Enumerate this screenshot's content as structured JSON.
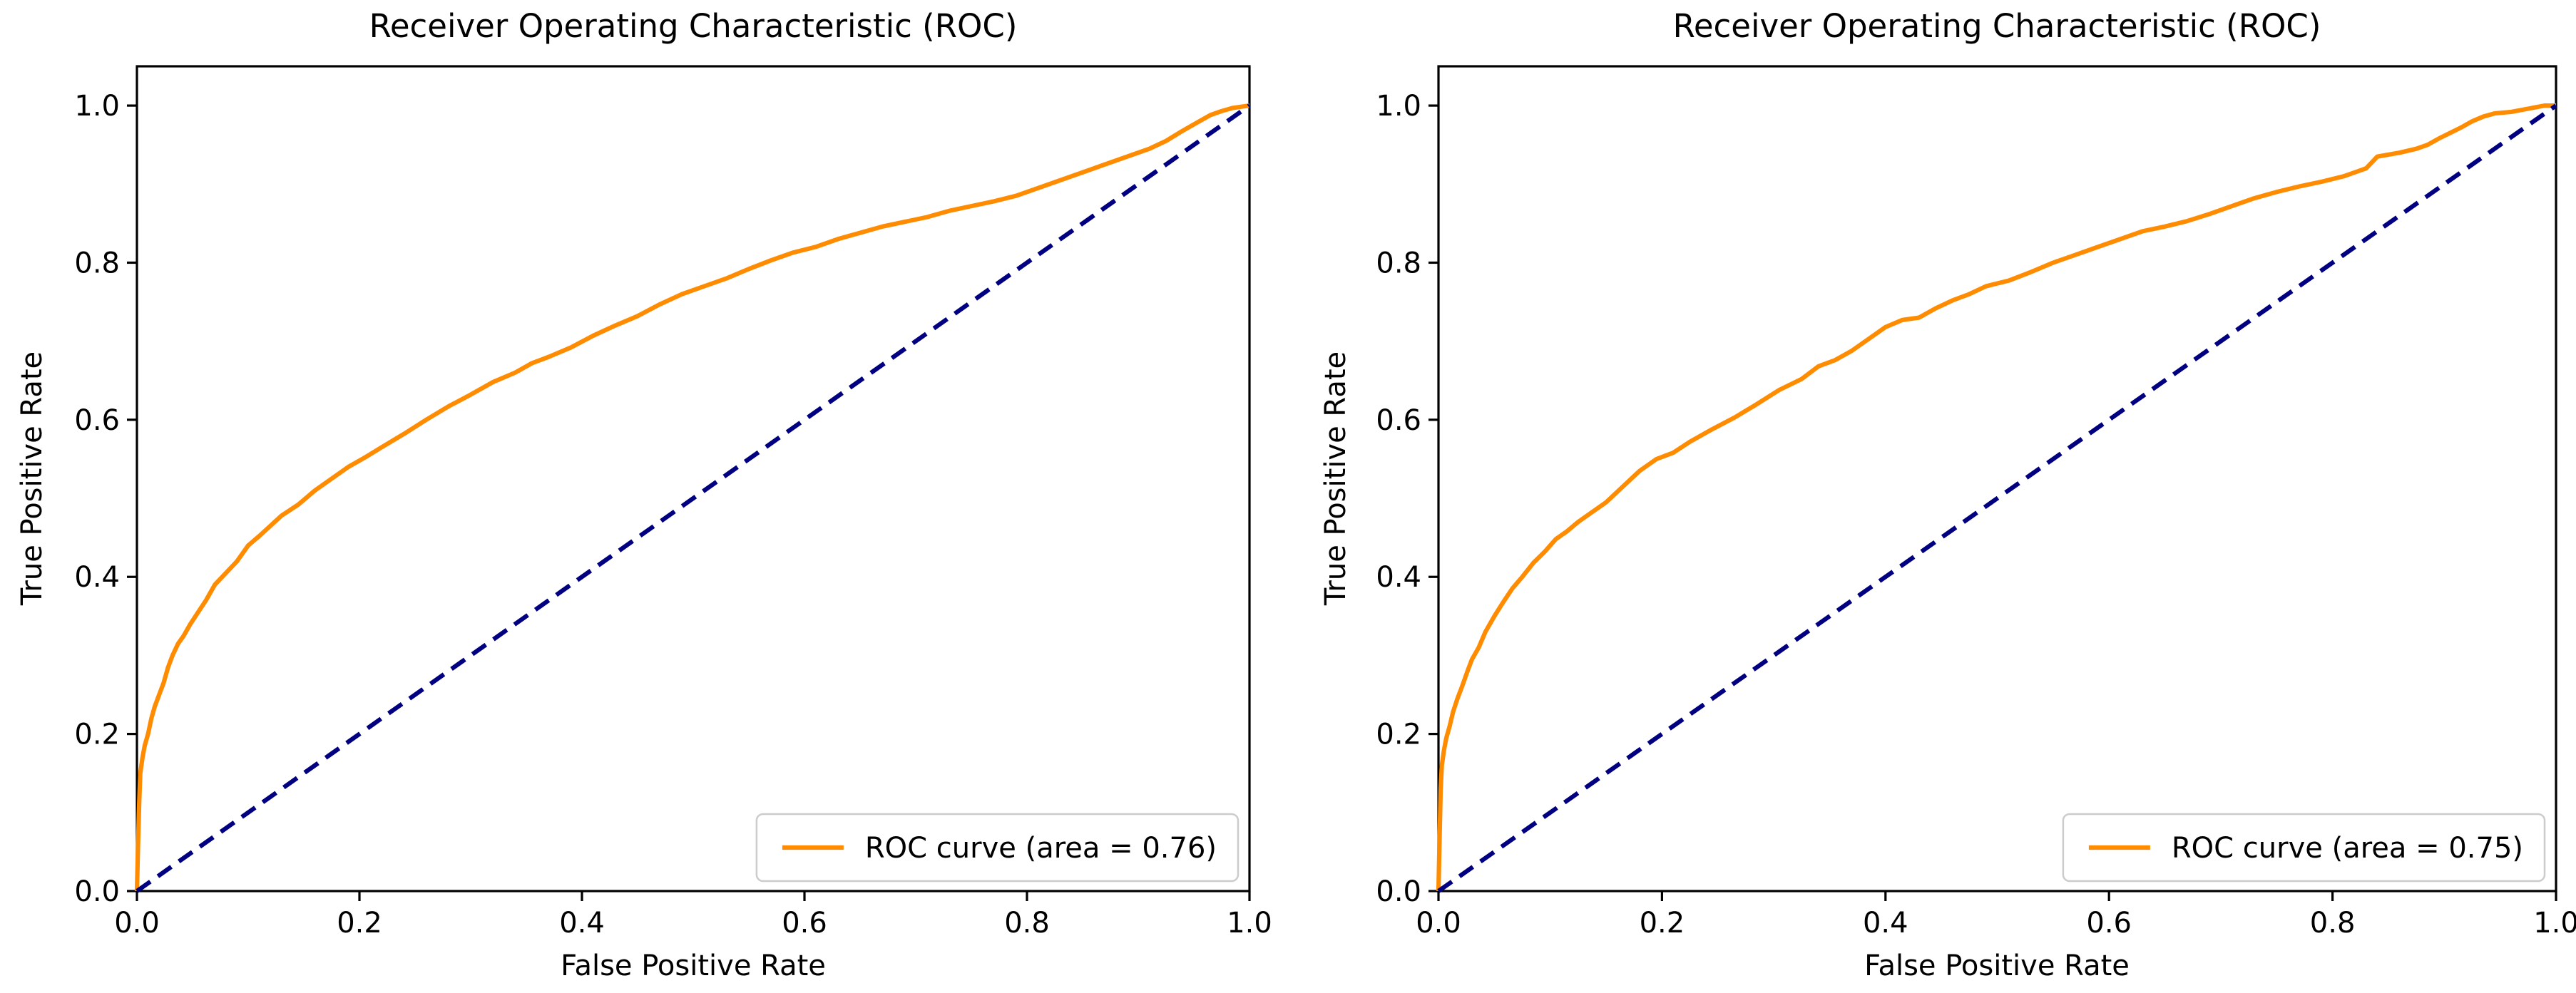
{
  "figure": {
    "background": "#ffffff",
    "description": "Two side-by-side ROC curve plots"
  },
  "colors": {
    "roc_curve": "#FF8C00",
    "chance_line": "#000080",
    "text": "#000000",
    "spine": "#000000",
    "legend_border": "#cccccc",
    "legend_background": "#ffffff"
  },
  "chart_data": [
    {
      "type": "line",
      "title": "Receiver Operating Characteristic (ROC)",
      "xlabel": "False Positive Rate",
      "ylabel": "True Positive Rate",
      "xlim": [
        0.0,
        1.0
      ],
      "ylim": [
        0.0,
        1.05
      ],
      "x_ticks": [
        0.0,
        0.2,
        0.4,
        0.6,
        0.8,
        1.0
      ],
      "y_ticks": [
        0.0,
        0.2,
        0.4,
        0.6,
        0.8,
        1.0
      ],
      "grid": false,
      "legend": {
        "position": "lower right",
        "label": "ROC curve (area = 0.76)"
      },
      "auc": 0.76,
      "series": [
        {
          "name": "ROC curve",
          "color": "#FF8C00",
          "style": "solid",
          "points": [
            [
              0,
              0
            ],
            [
              0.001,
              0.06
            ],
            [
              0.002,
              0.11
            ],
            [
              0.003,
              0.15
            ],
            [
              0.005,
              0.17
            ],
            [
              0.007,
              0.185
            ],
            [
              0.01,
              0.2
            ],
            [
              0.013,
              0.22
            ],
            [
              0.016,
              0.235
            ],
            [
              0.02,
              0.25
            ],
            [
              0.024,
              0.265
            ],
            [
              0.028,
              0.285
            ],
            [
              0.032,
              0.3
            ],
            [
              0.037,
              0.315
            ],
            [
              0.042,
              0.325
            ],
            [
              0.048,
              0.34
            ],
            [
              0.055,
              0.355
            ],
            [
              0.062,
              0.37
            ],
            [
              0.07,
              0.39
            ],
            [
              0.08,
              0.405
            ],
            [
              0.09,
              0.42
            ],
            [
              0.1,
              0.44
            ],
            [
              0.11,
              0.452
            ],
            [
              0.12,
              0.465
            ],
            [
              0.13,
              0.478
            ],
            [
              0.145,
              0.492
            ],
            [
              0.16,
              0.51
            ],
            [
              0.175,
              0.525
            ],
            [
              0.19,
              0.54
            ],
            [
              0.205,
              0.552
            ],
            [
              0.22,
              0.565
            ],
            [
              0.24,
              0.582
            ],
            [
              0.26,
              0.6
            ],
            [
              0.28,
              0.617
            ],
            [
              0.3,
              0.632
            ],
            [
              0.32,
              0.648
            ],
            [
              0.34,
              0.66
            ],
            [
              0.355,
              0.672
            ],
            [
              0.37,
              0.68
            ],
            [
              0.39,
              0.692
            ],
            [
              0.41,
              0.707
            ],
            [
              0.43,
              0.72
            ],
            [
              0.45,
              0.732
            ],
            [
              0.47,
              0.747
            ],
            [
              0.49,
              0.76
            ],
            [
              0.51,
              0.77
            ],
            [
              0.53,
              0.78
            ],
            [
              0.55,
              0.792
            ],
            [
              0.57,
              0.803
            ],
            [
              0.59,
              0.813
            ],
            [
              0.61,
              0.82
            ],
            [
              0.63,
              0.83
            ],
            [
              0.65,
              0.838
            ],
            [
              0.67,
              0.846
            ],
            [
              0.69,
              0.852
            ],
            [
              0.71,
              0.858
            ],
            [
              0.73,
              0.866
            ],
            [
              0.75,
              0.872
            ],
            [
              0.77,
              0.878
            ],
            [
              0.79,
              0.885
            ],
            [
              0.81,
              0.895
            ],
            [
              0.83,
              0.905
            ],
            [
              0.85,
              0.915
            ],
            [
              0.87,
              0.925
            ],
            [
              0.89,
              0.935
            ],
            [
              0.91,
              0.945
            ],
            [
              0.925,
              0.955
            ],
            [
              0.94,
              0.968
            ],
            [
              0.955,
              0.98
            ],
            [
              0.965,
              0.988
            ],
            [
              0.975,
              0.993
            ],
            [
              0.985,
              0.997
            ],
            [
              1,
              1
            ]
          ]
        },
        {
          "name": "chance",
          "color": "#000080",
          "style": "dashed",
          "points": [
            [
              0,
              0
            ],
            [
              1,
              1
            ]
          ]
        }
      ]
    },
    {
      "type": "line",
      "title": "Receiver Operating Characteristic (ROC)",
      "xlabel": "False Positive Rate",
      "ylabel": "True Positive Rate",
      "xlim": [
        0.0,
        1.0
      ],
      "ylim": [
        0.0,
        1.05
      ],
      "x_ticks": [
        0.0,
        0.2,
        0.4,
        0.6,
        0.8,
        1.0
      ],
      "y_ticks": [
        0.0,
        0.2,
        0.4,
        0.6,
        0.8,
        1.0
      ],
      "grid": false,
      "legend": {
        "position": "lower right",
        "label": "ROC curve (area = 0.75)"
      },
      "auc": 0.75,
      "series": [
        {
          "name": "ROC curve",
          "color": "#FF8C00",
          "style": "solid",
          "points": [
            [
              0,
              0
            ],
            [
              0.001,
              0.07
            ],
            [
              0.002,
              0.13
            ],
            [
              0.003,
              0.16
            ],
            [
              0.005,
              0.18
            ],
            [
              0.007,
              0.195
            ],
            [
              0.01,
              0.21
            ],
            [
              0.013,
              0.228
            ],
            [
              0.017,
              0.245
            ],
            [
              0.021,
              0.26
            ],
            [
              0.026,
              0.28
            ],
            [
              0.03,
              0.295
            ],
            [
              0.036,
              0.31
            ],
            [
              0.042,
              0.33
            ],
            [
              0.05,
              0.35
            ],
            [
              0.058,
              0.368
            ],
            [
              0.066,
              0.385
            ],
            [
              0.075,
              0.4
            ],
            [
              0.085,
              0.418
            ],
            [
              0.095,
              0.432
            ],
            [
              0.105,
              0.448
            ],
            [
              0.115,
              0.458
            ],
            [
              0.125,
              0.47
            ],
            [
              0.135,
              0.48
            ],
            [
              0.15,
              0.495
            ],
            [
              0.165,
              0.515
            ],
            [
              0.18,
              0.535
            ],
            [
              0.195,
              0.55
            ],
            [
              0.21,
              0.558
            ],
            [
              0.225,
              0.572
            ],
            [
              0.245,
              0.588
            ],
            [
              0.265,
              0.603
            ],
            [
              0.285,
              0.62
            ],
            [
              0.305,
              0.638
            ],
            [
              0.325,
              0.652
            ],
            [
              0.34,
              0.668
            ],
            [
              0.355,
              0.676
            ],
            [
              0.37,
              0.688
            ],
            [
              0.385,
              0.703
            ],
            [
              0.4,
              0.718
            ],
            [
              0.415,
              0.727
            ],
            [
              0.43,
              0.73
            ],
            [
              0.445,
              0.742
            ],
            [
              0.46,
              0.752
            ],
            [
              0.475,
              0.76
            ],
            [
              0.49,
              0.77
            ],
            [
              0.51,
              0.777
            ],
            [
              0.53,
              0.788
            ],
            [
              0.55,
              0.8
            ],
            [
              0.57,
              0.81
            ],
            [
              0.59,
              0.82
            ],
            [
              0.61,
              0.83
            ],
            [
              0.63,
              0.84
            ],
            [
              0.65,
              0.846
            ],
            [
              0.67,
              0.853
            ],
            [
              0.69,
              0.862
            ],
            [
              0.71,
              0.872
            ],
            [
              0.73,
              0.882
            ],
            [
              0.75,
              0.89
            ],
            [
              0.77,
              0.897
            ],
            [
              0.79,
              0.903
            ],
            [
              0.81,
              0.91
            ],
            [
              0.83,
              0.92
            ],
            [
              0.84,
              0.935
            ],
            [
              0.86,
              0.94
            ],
            [
              0.875,
              0.945
            ],
            [
              0.885,
              0.95
            ],
            [
              0.895,
              0.958
            ],
            [
              0.905,
              0.965
            ],
            [
              0.915,
              0.972
            ],
            [
              0.925,
              0.98
            ],
            [
              0.935,
              0.986
            ],
            [
              0.945,
              0.99
            ],
            [
              0.96,
              0.992
            ],
            [
              0.975,
              0.996
            ],
            [
              0.99,
              1
            ],
            [
              1,
              1
            ]
          ]
        },
        {
          "name": "chance",
          "color": "#000080",
          "style": "dashed",
          "points": [
            [
              0,
              0
            ],
            [
              1,
              1
            ]
          ]
        }
      ]
    }
  ]
}
